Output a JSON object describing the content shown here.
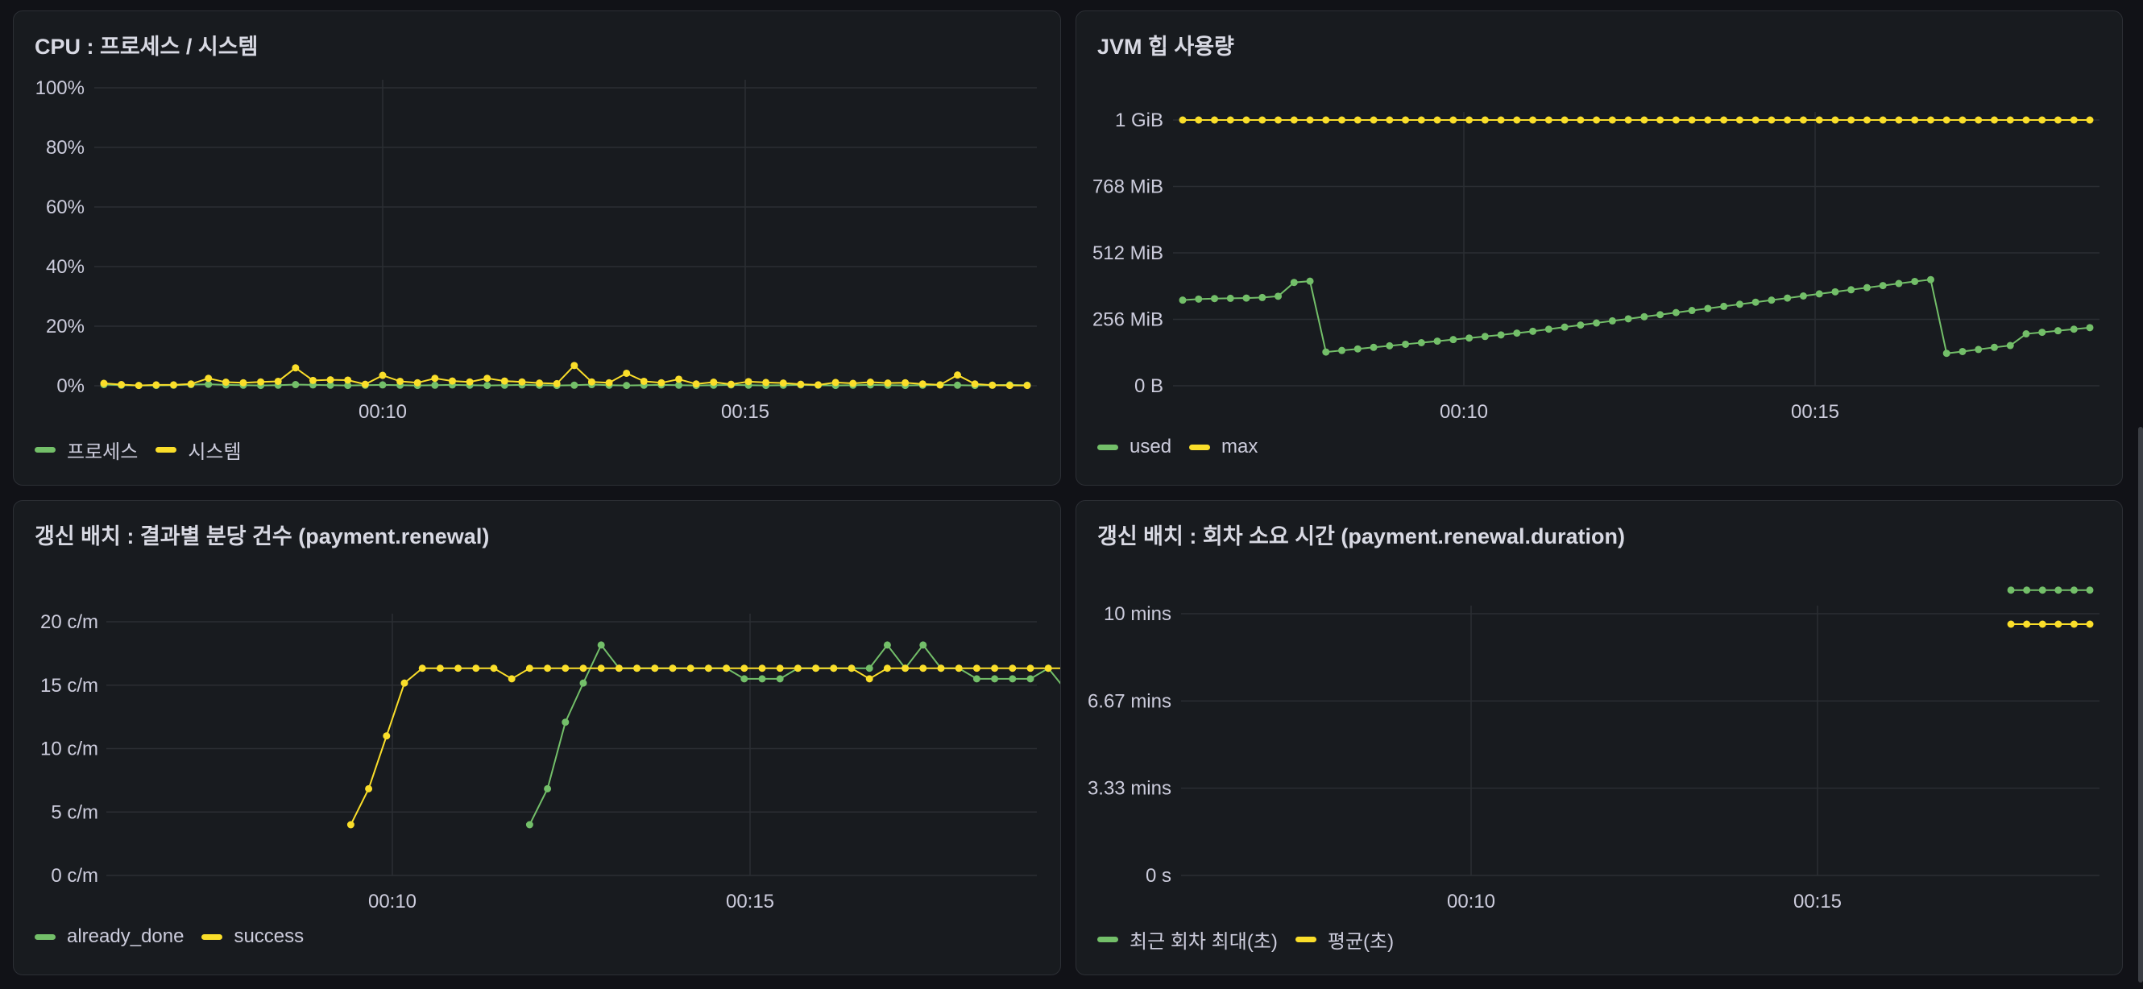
{
  "panels": {
    "cpu": {
      "title": "CPU : 프로세스 / 시스템",
      "legend": [
        {
          "label": "프로세스",
          "color": "#73bf69"
        },
        {
          "label": "시스템",
          "color": "#fade2a"
        }
      ]
    },
    "jvm": {
      "title": "JVM 힙 사용량",
      "legend": [
        {
          "label": "used",
          "color": "#73bf69"
        },
        {
          "label": "max",
          "color": "#fade2a"
        }
      ]
    },
    "renewal": {
      "title": "갱신 배치 : 결과별 분당 건수 (payment.renewal)",
      "legend": [
        {
          "label": "already_done",
          "color": "#73bf69"
        },
        {
          "label": "success",
          "color": "#fade2a"
        }
      ]
    },
    "duration": {
      "title": "갱신 배치 : 회차 소요 시간 (payment.renewal.duration)",
      "legend": [
        {
          "label": "최근 회차 최대(초)",
          "color": "#73bf69"
        },
        {
          "label": "평균(초)",
          "color": "#fade2a"
        }
      ]
    }
  },
  "chart_data": [
    {
      "id": "cpu",
      "type": "line",
      "title": "CPU : 프로세스 / 시스템",
      "x_ticks": [
        "00:10",
        "00:15"
      ],
      "y_ticks": [
        "0%",
        "20%",
        "40%",
        "60%",
        "80%",
        "100%"
      ],
      "ylim": [
        0,
        100
      ],
      "series": [
        {
          "name": "프로세스",
          "color": "#73bf69",
          "values": [
            0.4,
            0.2,
            0.1,
            0.1,
            0.2,
            0.4,
            0.5,
            0.3,
            0.2,
            0.1,
            0.2,
            0.4,
            0.3,
            0.2,
            0.1,
            0.2,
            0.3,
            0.2,
            0.1,
            0.2,
            0.3,
            0.2,
            0.1,
            0.2,
            0.3,
            0.2,
            0.1,
            0.2,
            0.4,
            0.2,
            0.1,
            0.2,
            0.3,
            0.2,
            0.1,
            0.2,
            0.3,
            0.2,
            0.1,
            0.2,
            0.3,
            0.2,
            0.1,
            0.2,
            0.3,
            0.2,
            0.1,
            0.2,
            0.3,
            0.2,
            0.1,
            0.2,
            0.3,
            0.2
          ]
        },
        {
          "name": "시스템",
          "color": "#fade2a",
          "values": [
            0.8,
            0.4,
            0.1,
            0.3,
            0.3,
            0.6,
            2.5,
            1.2,
            1.0,
            1.3,
            1.5,
            6.0,
            1.8,
            2.0,
            1.9,
            0.5,
            3.5,
            1.5,
            1.0,
            2.5,
            1.6,
            1.3,
            2.5,
            1.6,
            1.3,
            0.9,
            0.7,
            6.8,
            1.3,
            1.0,
            4.2,
            1.5,
            1.0,
            2.2,
            0.6,
            1.2,
            0.5,
            1.4,
            1.1,
            0.9,
            0.5,
            0.3,
            1.1,
            0.8,
            1.2,
            0.9,
            1.0,
            0.6,
            0.3,
            3.6,
            0.6,
            0.2,
            0.1,
            0.1
          ]
        }
      ]
    },
    {
      "id": "jvm",
      "type": "line",
      "title": "JVM 힙 사용량",
      "x_ticks": [
        "00:10",
        "00:15"
      ],
      "y_ticks": [
        "0 B",
        "256 MiB",
        "512 MiB",
        "768 MiB",
        "1 GiB"
      ],
      "ylim": [
        0,
        1024
      ],
      "y_unit": "MiB",
      "series": [
        {
          "name": "used",
          "color": "#73bf69",
          "values": [
            330,
            334,
            336,
            337,
            338,
            340,
            345,
            398,
            403,
            130,
            136,
            142,
            148,
            154,
            160,
            166,
            172,
            178,
            184,
            190,
            196,
            203,
            210,
            218,
            226,
            234,
            242,
            250,
            258,
            266,
            274,
            282,
            290,
            298,
            306,
            314,
            322,
            330,
            338,
            346,
            354,
            362,
            370,
            378,
            386,
            394,
            402,
            409,
            125,
            132,
            140,
            148,
            155,
            200,
            206,
            212,
            218,
            224
          ]
        },
        {
          "name": "max",
          "color": "#fade2a",
          "values": [
            1024,
            1024,
            1024,
            1024,
            1024,
            1024,
            1024,
            1024,
            1024,
            1024,
            1024,
            1024,
            1024,
            1024,
            1024,
            1024,
            1024,
            1024,
            1024,
            1024,
            1024,
            1024,
            1024,
            1024,
            1024,
            1024,
            1024,
            1024,
            1024,
            1024,
            1024,
            1024,
            1024,
            1024,
            1024,
            1024,
            1024,
            1024,
            1024,
            1024,
            1024,
            1024,
            1024,
            1024,
            1024,
            1024,
            1024,
            1024,
            1024,
            1024,
            1024,
            1024,
            1024,
            1024,
            1024,
            1024,
            1024,
            1024
          ]
        }
      ]
    },
    {
      "id": "renewal",
      "type": "line",
      "title": "갱신 배치 : 결과별 분당 건수 (payment.renewal)",
      "x_ticks": [
        "00:10",
        "00:15"
      ],
      "y_ticks": [
        "0 c/m",
        "5 c/m",
        "10 c/m",
        "15 c/m",
        "20 c/m"
      ],
      "ylim": [
        0,
        24
      ],
      "y_unit": "c/m",
      "series": [
        {
          "name": "already_done",
          "color": "#73bf69",
          "values": [
            null,
            null,
            null,
            null,
            null,
            null,
            null,
            null,
            null,
            null,
            null,
            null,
            null,
            null,
            null,
            null,
            null,
            null,
            null,
            null,
            null,
            null,
            null,
            null,
            null,
            null,
            null,
            null,
            null,
            null,
            null,
            null,
            null,
            null,
            null,
            null,
            null,
            null,
            null,
            null,
            null,
            null,
            null,
            null,
            null,
            null,
            null,
            null,
            null,
            null,
            null,
            null,
            null,
            null,
            null,
            null,
            null,
            null,
            null,
            null,
            null,
            null,
            null,
            null,
            null,
            null,
            null,
            null,
            null,
            null,
            null,
            null,
            null,
            null,
            null,
            null,
            null,
            null,
            null,
            null,
            null,
            null,
            null,
            null,
            null,
            null,
            null,
            null,
            null,
            null,
            null,
            null,
            null,
            null,
            null,
            null,
            null,
            null,
            null,
            null,
            null,
            null,
            null,
            null,
            null,
            null,
            null,
            null,
            null,
            null,
            null,
            null,
            null,
            null,
            null,
            null,
            null,
            null,
            null,
            null,
            null,
            null,
            null,
            null,
            null,
            null,
            null,
            null,
            null,
            null,
            null,
            null,
            null,
            null,
            null,
            null,
            null,
            null,
            null,
            null,
            null,
            null,
            null,
            null,
            null,
            null,
            null,
            null,
            null,
            null,
            null,
            null,
            null,
            null,
            null,
            null,
            null,
            null,
            null,
            null,
            null,
            null,
            null,
            null,
            null,
            null,
            null,
            null,
            null,
            null,
            null,
            null,
            null,
            null,
            null,
            null,
            null,
            null,
            null,
            null,
            null,
            null,
            null,
            null,
            null,
            null,
            null,
            null,
            null,
            null,
            null,
            null,
            null,
            null,
            null,
            null,
            null,
            null,
            null,
            null
          ]
        }
      ]
    }
  ]
}
